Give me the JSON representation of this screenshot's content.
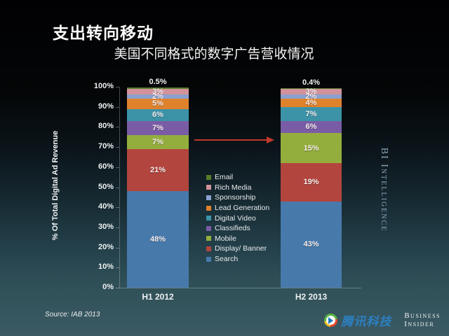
{
  "page": {
    "title": "支出转向移动",
    "chart_title": "美国不同格式的数字广告营收情况",
    "source": "Source: IAB 2013",
    "watermark": "BI Intelligence"
  },
  "brand": {
    "tencent": "腾讯科技",
    "bi_line1": "Business",
    "bi_line2": "Insider"
  },
  "chart_data": {
    "type": "bar",
    "stacked": true,
    "title": "美国不同格式的数字广告营收情况",
    "categories": [
      "H1 2012",
      "H2 2013"
    ],
    "series": [
      {
        "name": "Email",
        "color": "#567d2b",
        "values": [
          0.5,
          0.4
        ],
        "label_outside": true
      },
      {
        "name": "Rich Media",
        "color": "#d2929b",
        "values": [
          3,
          3
        ]
      },
      {
        "name": "Sponsorship",
        "color": "#8aa0cf",
        "values": [
          2,
          2
        ]
      },
      {
        "name": "Lead Generation",
        "color": "#e0822c",
        "values": [
          5,
          4
        ]
      },
      {
        "name": "Digital Video",
        "color": "#3c93a8",
        "values": [
          6,
          7
        ]
      },
      {
        "name": "Classifieds",
        "color": "#7a5ca6",
        "values": [
          7,
          6
        ]
      },
      {
        "name": "Mobile",
        "color": "#94ae3d",
        "values": [
          7,
          15
        ]
      },
      {
        "name": "Display/ Banner",
        "color": "#b2453e",
        "values": [
          21,
          19
        ]
      },
      {
        "name": "Search",
        "color": "#4779ab",
        "values": [
          48,
          43
        ]
      }
    ],
    "legend": [
      "Email",
      "Rich Media",
      "Sponsorship",
      "Lead Generation",
      "Digital Video",
      "Classifieds",
      "Mobile",
      "Display/ Banner",
      "Search"
    ],
    "legend_position": "center-between-bars",
    "ylabel": "% Of Total Digital Ad Revenue",
    "yticks": [
      "100%",
      "90%",
      "80%",
      "70%",
      "60%",
      "50%",
      "40%",
      "30%",
      "20%",
      "10%",
      "0%"
    ],
    "ylim": [
      0,
      100
    ],
    "grid": false,
    "annotation": "red arrow pointing from H1 2012 bar to H2 2013 bar",
    "arrow_color": "#c0392b"
  }
}
